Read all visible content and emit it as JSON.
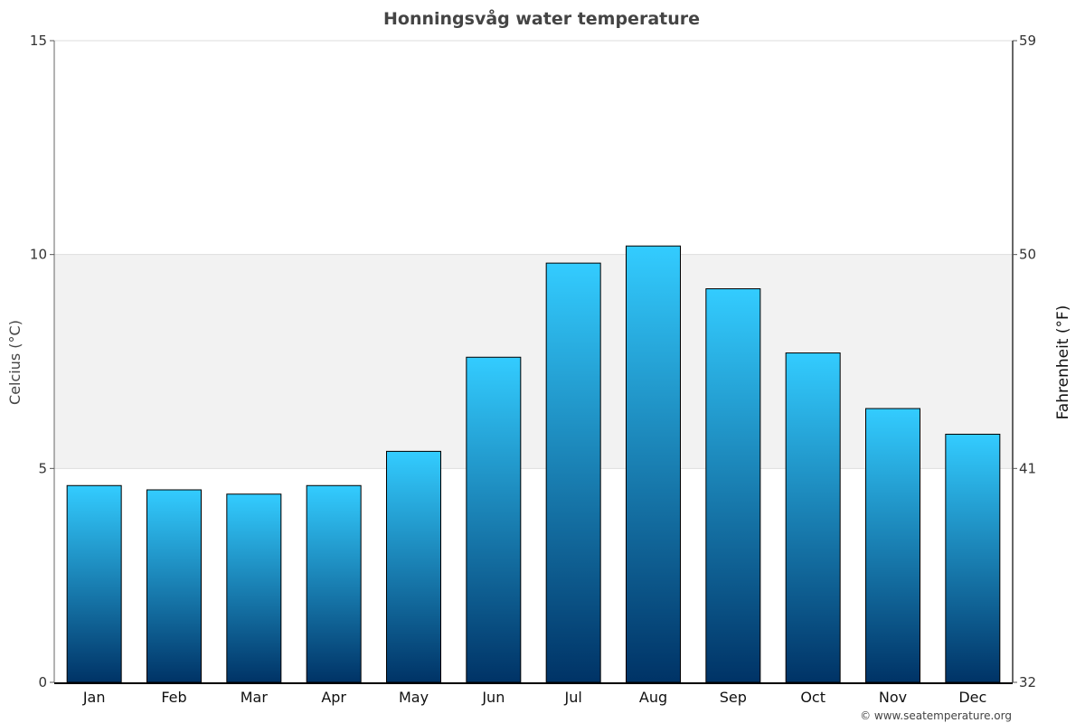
{
  "chart_data": {
    "type": "bar",
    "title": "Honningsvåg water temperature",
    "categories": [
      "Jan",
      "Feb",
      "Mar",
      "Apr",
      "May",
      "Jun",
      "Jul",
      "Aug",
      "Sep",
      "Oct",
      "Nov",
      "Dec"
    ],
    "series": [
      {
        "values": [
          4.6,
          4.5,
          4.4,
          4.6,
          5.4,
          7.6,
          9.8,
          10.2,
          9.2,
          7.7,
          6.4,
          5.8
        ]
      }
    ],
    "ylabel": "Celcius (°C)",
    "ylabel_right": "Fahrenheit (°F)",
    "ylim": [
      0,
      15
    ],
    "yticks": [
      "0",
      "5",
      "10",
      "15"
    ],
    "yticks_right": [
      "32",
      "41",
      "50",
      "59"
    ],
    "highlight_band": [
      5,
      10
    ],
    "grid": true,
    "legend": "none",
    "credit": "© www.seatemperature.org",
    "colors": {
      "bar_top": "#33ccff",
      "bar_bottom": "#003366",
      "bar_outline": "#000000",
      "band": "#f2f2f2",
      "gridline": "#dddddd",
      "title": "#444444"
    }
  }
}
